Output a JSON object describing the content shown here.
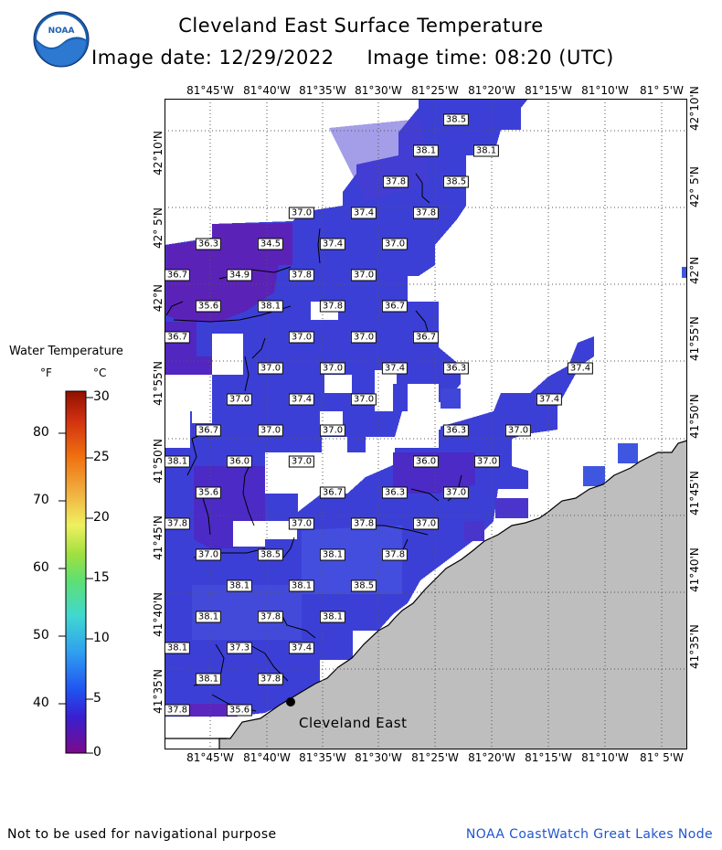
{
  "header": {
    "title": "Cleveland East Surface Temperature",
    "subtitle": "Image date: 12/29/2022     Image time: 08:20 (UTC)",
    "logo_text": "NOAA"
  },
  "map": {
    "top_lon_labels": [
      "81°45'W",
      "81°40'W",
      "81°35'W",
      "81°30'W",
      "81°25'W",
      "81°20'W",
      "81°15'W",
      "81°10'W",
      "81° 5'W"
    ],
    "bottom_lon_labels": [
      "81°45'W",
      "81°40'W",
      "81°35'W",
      "81°30'W",
      "81°25'W",
      "81°20'W",
      "81°15'W",
      "81°10'W",
      "81° 5'W"
    ],
    "lat_labels": [
      "42°10'N",
      "42° 5'N",
      "42°N",
      "41°55'N",
      "41°50'N",
      "41°45'N",
      "41°40'N",
      "41°35'N"
    ],
    "station_name": "Cleveland East",
    "temperature_labels": [
      "38.5",
      "38.1",
      "38.1",
      "37.8",
      "38.5",
      "37.0",
      "37.4",
      "37.8",
      "36.3",
      "34.5",
      "37.4",
      "37.0",
      "36.7",
      "34.9",
      "37.8",
      "37.0",
      "35.6",
      "38.1",
      "37.8",
      "36.7",
      "36.7",
      "37.0",
      "37.0",
      "36.7",
      "37.0",
      "37.0",
      "37.4",
      "36.3",
      "37.4",
      "37.0",
      "37.4",
      "37.0",
      "37.4",
      "36.7",
      "37.0",
      "37.0",
      "36.3",
      "37.0",
      "38.1",
      "36.0",
      "37.0",
      "36.0",
      "37.0",
      "35.6",
      "36.7",
      "36.3",
      "37.0",
      "37.8",
      "37.0",
      "37.8",
      "37.0",
      "37.0",
      "38.5",
      "38.1",
      "37.8",
      "38.1",
      "38.1",
      "38.5",
      "38.1",
      "37.8",
      "38.1",
      "38.1",
      "37.3",
      "37.4",
      "38.1",
      "37.8",
      "37.8",
      "35.6"
    ]
  },
  "legend": {
    "title": "Water Temperature",
    "unit_f": "°F",
    "unit_c": "°C",
    "f_ticks": [
      "80",
      "70",
      "60",
      "50",
      "40"
    ],
    "c_ticks": [
      "30",
      "25",
      "20",
      "15",
      "10",
      "5",
      "0"
    ]
  },
  "colors": {
    "land": "#bebebe",
    "water_cold": "#6a1fb0",
    "water_mid": "#4a3bd0",
    "water_warm": "#3f56e0"
  },
  "footer": {
    "disclaimer": "Not to be used for navigational purpose",
    "credit": "NOAA CoastWatch Great Lakes Node"
  }
}
